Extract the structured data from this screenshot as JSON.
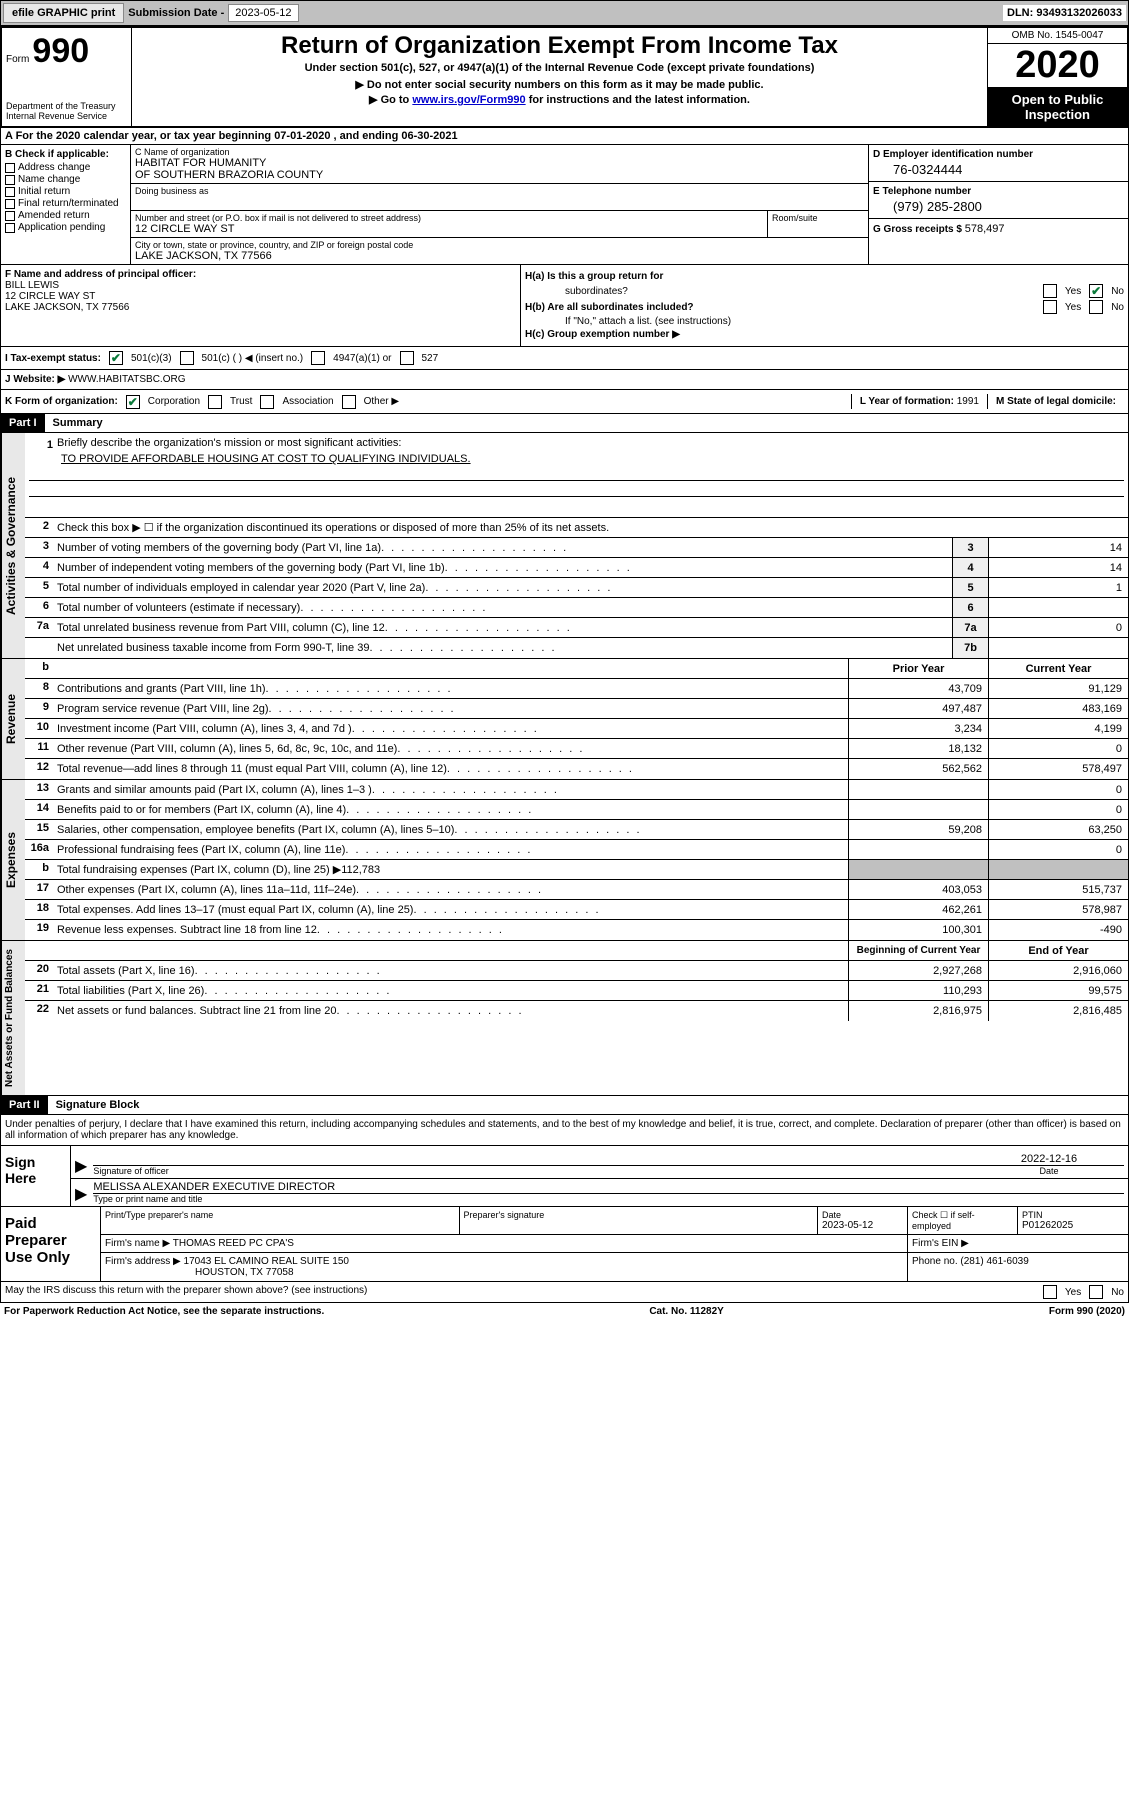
{
  "topbar": {
    "efile": "efile GRAPHIC print",
    "submission_label": "Submission Date - ",
    "submission_date": "2023-05-12",
    "dln_label": "DLN: ",
    "dln": "93493132026033"
  },
  "header": {
    "form_label": "Form",
    "form_number": "990",
    "dept": "Department of the Treasury\nInternal Revenue Service",
    "title": "Return of Organization Exempt From Income Tax",
    "sub1": "Under section 501(c), 527, or 4947(a)(1) of the Internal Revenue Code (except private foundations)",
    "sub2": "▶ Do not enter social security numbers on this form as it may be made public.",
    "sub3_pre": "▶ Go to ",
    "sub3_link": "www.irs.gov/Form990",
    "sub3_post": " for instructions and the latest information.",
    "omb": "OMB No. 1545-0047",
    "year": "2020",
    "open_public": "Open to Public Inspection"
  },
  "line_a": "A For the 2020 calendar year, or tax year beginning 07-01-2020      , and ending 06-30-2021",
  "col_b": {
    "hdr": "B Check if applicable:",
    "items": [
      "Address change",
      "Name change",
      "Initial return",
      "Final return/terminated",
      "Amended return",
      "Application pending"
    ]
  },
  "org": {
    "name_label": "C Name of organization",
    "name1": "HABITAT FOR HUMANITY",
    "name2": "OF SOUTHERN BRAZORIA COUNTY",
    "dba_label": "Doing business as",
    "street_label": "Number and street (or P.O. box if mail is not delivered to street address)",
    "room_label": "Room/suite",
    "street": "12 CIRCLE WAY ST",
    "city_label": "City or town, state or province, country, and ZIP or foreign postal code",
    "city": "LAKE JACKSON, TX   77566"
  },
  "right": {
    "ein_label": "D Employer identification number",
    "ein": "76-0324444",
    "phone_label": "E Telephone number",
    "phone": "(979) 285-2800",
    "gross_label": "G Gross receipts $ ",
    "gross": "578,497"
  },
  "f": {
    "label": "F   Name and address of principal officer:",
    "name": "BILL LEWIS",
    "street": "12 CIRCLE WAY ST",
    "city": "LAKE JACKSON, TX   77566"
  },
  "h": {
    "a_label": "H(a)   Is this a group return for",
    "a_label2": "subordinates?",
    "b_label": "H(b)   Are all subordinates included?",
    "b_note": "If \"No,\" attach a list. (see instructions)",
    "c_label": "H(c)   Group exemption number ▶",
    "yes": "Yes",
    "no": "No"
  },
  "i": {
    "label": "I    Tax-exempt status:",
    "opts": [
      "501(c)(3)",
      "501(c) (   ) ◀ (insert no.)",
      "4947(a)(1) or",
      "527"
    ]
  },
  "j": {
    "label": "J    Website: ▶",
    "value": "  WWW.HABITATSBC.ORG"
  },
  "k": {
    "label": "K Form of organization:",
    "opts": [
      "Corporation",
      "Trust",
      "Association",
      "Other ▶"
    ],
    "l_label": "L Year of formation: ",
    "l_val": "1991",
    "m_label": "M State of legal domicile:"
  },
  "parts": {
    "p1": "Part I",
    "p1_title": "Summary",
    "p2": "Part II",
    "p2_title": "Signature Block"
  },
  "summary": {
    "q1": {
      "num": "1",
      "text": "Briefly describe the organization's mission or most significant activities:",
      "mission": "TO PROVIDE AFFORDABLE HOUSING AT COST TO QUALIFYING INDIVIDUALS."
    },
    "q2": {
      "num": "2",
      "text": "Check this box ▶ ☐  if the organization discontinued its operations or disposed of more than 25% of its net assets."
    },
    "rows_gov": [
      {
        "num": "3",
        "text": "Number of voting members of the governing body (Part VI, line 1a)",
        "key": "3",
        "val": "14"
      },
      {
        "num": "4",
        "text": "Number of independent voting members of the governing body (Part VI, line 1b)",
        "key": "4",
        "val": "14"
      },
      {
        "num": "5",
        "text": "Total number of individuals employed in calendar year 2020 (Part V, line 2a)",
        "key": "5",
        "val": "1"
      },
      {
        "num": "6",
        "text": "Total number of volunteers (estimate if necessary)",
        "key": "6",
        "val": ""
      },
      {
        "num": "7a",
        "text": "Total unrelated business revenue from Part VIII, column (C), line 12",
        "key": "7a",
        "val": "0"
      },
      {
        "num": "",
        "text": "Net unrelated business taxable income from Form 990-T, line 39",
        "key": "7b",
        "val": ""
      }
    ],
    "col_hdr_b": "b",
    "prior_year": "Prior Year",
    "current_year": "Current Year",
    "rows_rev": [
      {
        "num": "8",
        "text": "Contributions and grants (Part VIII, line 1h)",
        "prior": "43,709",
        "curr": "91,129"
      },
      {
        "num": "9",
        "text": "Program service revenue (Part VIII, line 2g)",
        "prior": "497,487",
        "curr": "483,169"
      },
      {
        "num": "10",
        "text": "Investment income (Part VIII, column (A), lines 3, 4, and 7d )",
        "prior": "3,234",
        "curr": "4,199"
      },
      {
        "num": "11",
        "text": "Other revenue (Part VIII, column (A), lines 5, 6d, 8c, 9c, 10c, and 11e)",
        "prior": "18,132",
        "curr": "0"
      },
      {
        "num": "12",
        "text": "Total revenue—add lines 8 through 11 (must equal Part VIII, column (A), line 12)",
        "prior": "562,562",
        "curr": "578,497"
      }
    ],
    "rows_exp": [
      {
        "num": "13",
        "text": "Grants and similar amounts paid (Part IX, column (A), lines 1–3 )",
        "prior": "",
        "curr": "0"
      },
      {
        "num": "14",
        "text": "Benefits paid to or for members (Part IX, column (A), line 4)",
        "prior": "",
        "curr": "0"
      },
      {
        "num": "15",
        "text": "Salaries, other compensation, employee benefits (Part IX, column (A), lines 5–10)",
        "prior": "59,208",
        "curr": "63,250"
      },
      {
        "num": "16a",
        "text": "Professional fundraising fees (Part IX, column (A), line 11e)",
        "prior": "",
        "curr": "0"
      },
      {
        "num": "b",
        "text": "Total fundraising expenses (Part IX, column (D), line 25) ▶112,783",
        "prior": "GRAY",
        "curr": "GRAY"
      },
      {
        "num": "17",
        "text": "Other expenses (Part IX, column (A), lines 11a–11d, 11f–24e)",
        "prior": "403,053",
        "curr": "515,737"
      },
      {
        "num": "18",
        "text": "Total expenses. Add lines 13–17 (must equal Part IX, column (A), line 25)",
        "prior": "462,261",
        "curr": "578,987"
      },
      {
        "num": "19",
        "text": "Revenue less expenses. Subtract line 18 from line 12",
        "prior": "100,301",
        "curr": "-490"
      }
    ],
    "net_hdr_prior": "Beginning of Current Year",
    "net_hdr_curr": "End of Year",
    "rows_net": [
      {
        "num": "20",
        "text": "Total assets (Part X, line 16)",
        "prior": "2,927,268",
        "curr": "2,916,060"
      },
      {
        "num": "21",
        "text": "Total liabilities (Part X, line 26)",
        "prior": "110,293",
        "curr": "99,575"
      },
      {
        "num": "22",
        "text": "Net assets or fund balances. Subtract line 21 from line 20",
        "prior": "2,816,975",
        "curr": "2,816,485"
      }
    ],
    "tabs": {
      "gov": "Activities & Governance",
      "rev": "Revenue",
      "exp": "Expenses",
      "net": "Net Assets or Fund Balances"
    }
  },
  "sig": {
    "intro": "Under penalties of perjury, I declare that I have examined this return, including accompanying schedules and statements, and to the best of my knowledge and belief, it is true, correct, and complete. Declaration of preparer (other than officer) is based on all information of which preparer has any knowledge.",
    "sign_here": "Sign Here",
    "sig_of_officer": "Signature of officer",
    "date": "Date",
    "date_val": "2022-12-16",
    "name_title": "MELISSA ALEXANDER  EXECUTIVE DIRECTOR",
    "type_name": "Type or print name and title"
  },
  "prep": {
    "title": "Paid Preparer Use Only",
    "print_name_lbl": "Print/Type preparer's name",
    "sig_lbl": "Preparer's signature",
    "date_lbl": "Date",
    "date_val": "2023-05-12",
    "check_lbl": "Check ☐  if self-employed",
    "ptin_lbl": "PTIN",
    "ptin": "P01262025",
    "firm_name_lbl": "Firm's name    ▶",
    "firm_name": "THOMAS REED PC CPA'S",
    "firm_ein_lbl": "Firm's EIN ▶",
    "firm_addr_lbl": "Firm's address ▶",
    "firm_addr1": "17043 EL CAMINO REAL SUITE 150",
    "firm_addr2": "HOUSTON, TX   77058",
    "phone_lbl": "Phone no. ",
    "phone": "(281) 461-6039"
  },
  "bottom": {
    "discuss": "May the IRS discuss this return with the preparer shown above? (see instructions)",
    "yes": "Yes",
    "no": "No",
    "paperwork": "For Paperwork Reduction Act Notice, see the separate instructions.",
    "cat": "Cat. No. 11282Y",
    "form": "Form 990 (2020)"
  }
}
